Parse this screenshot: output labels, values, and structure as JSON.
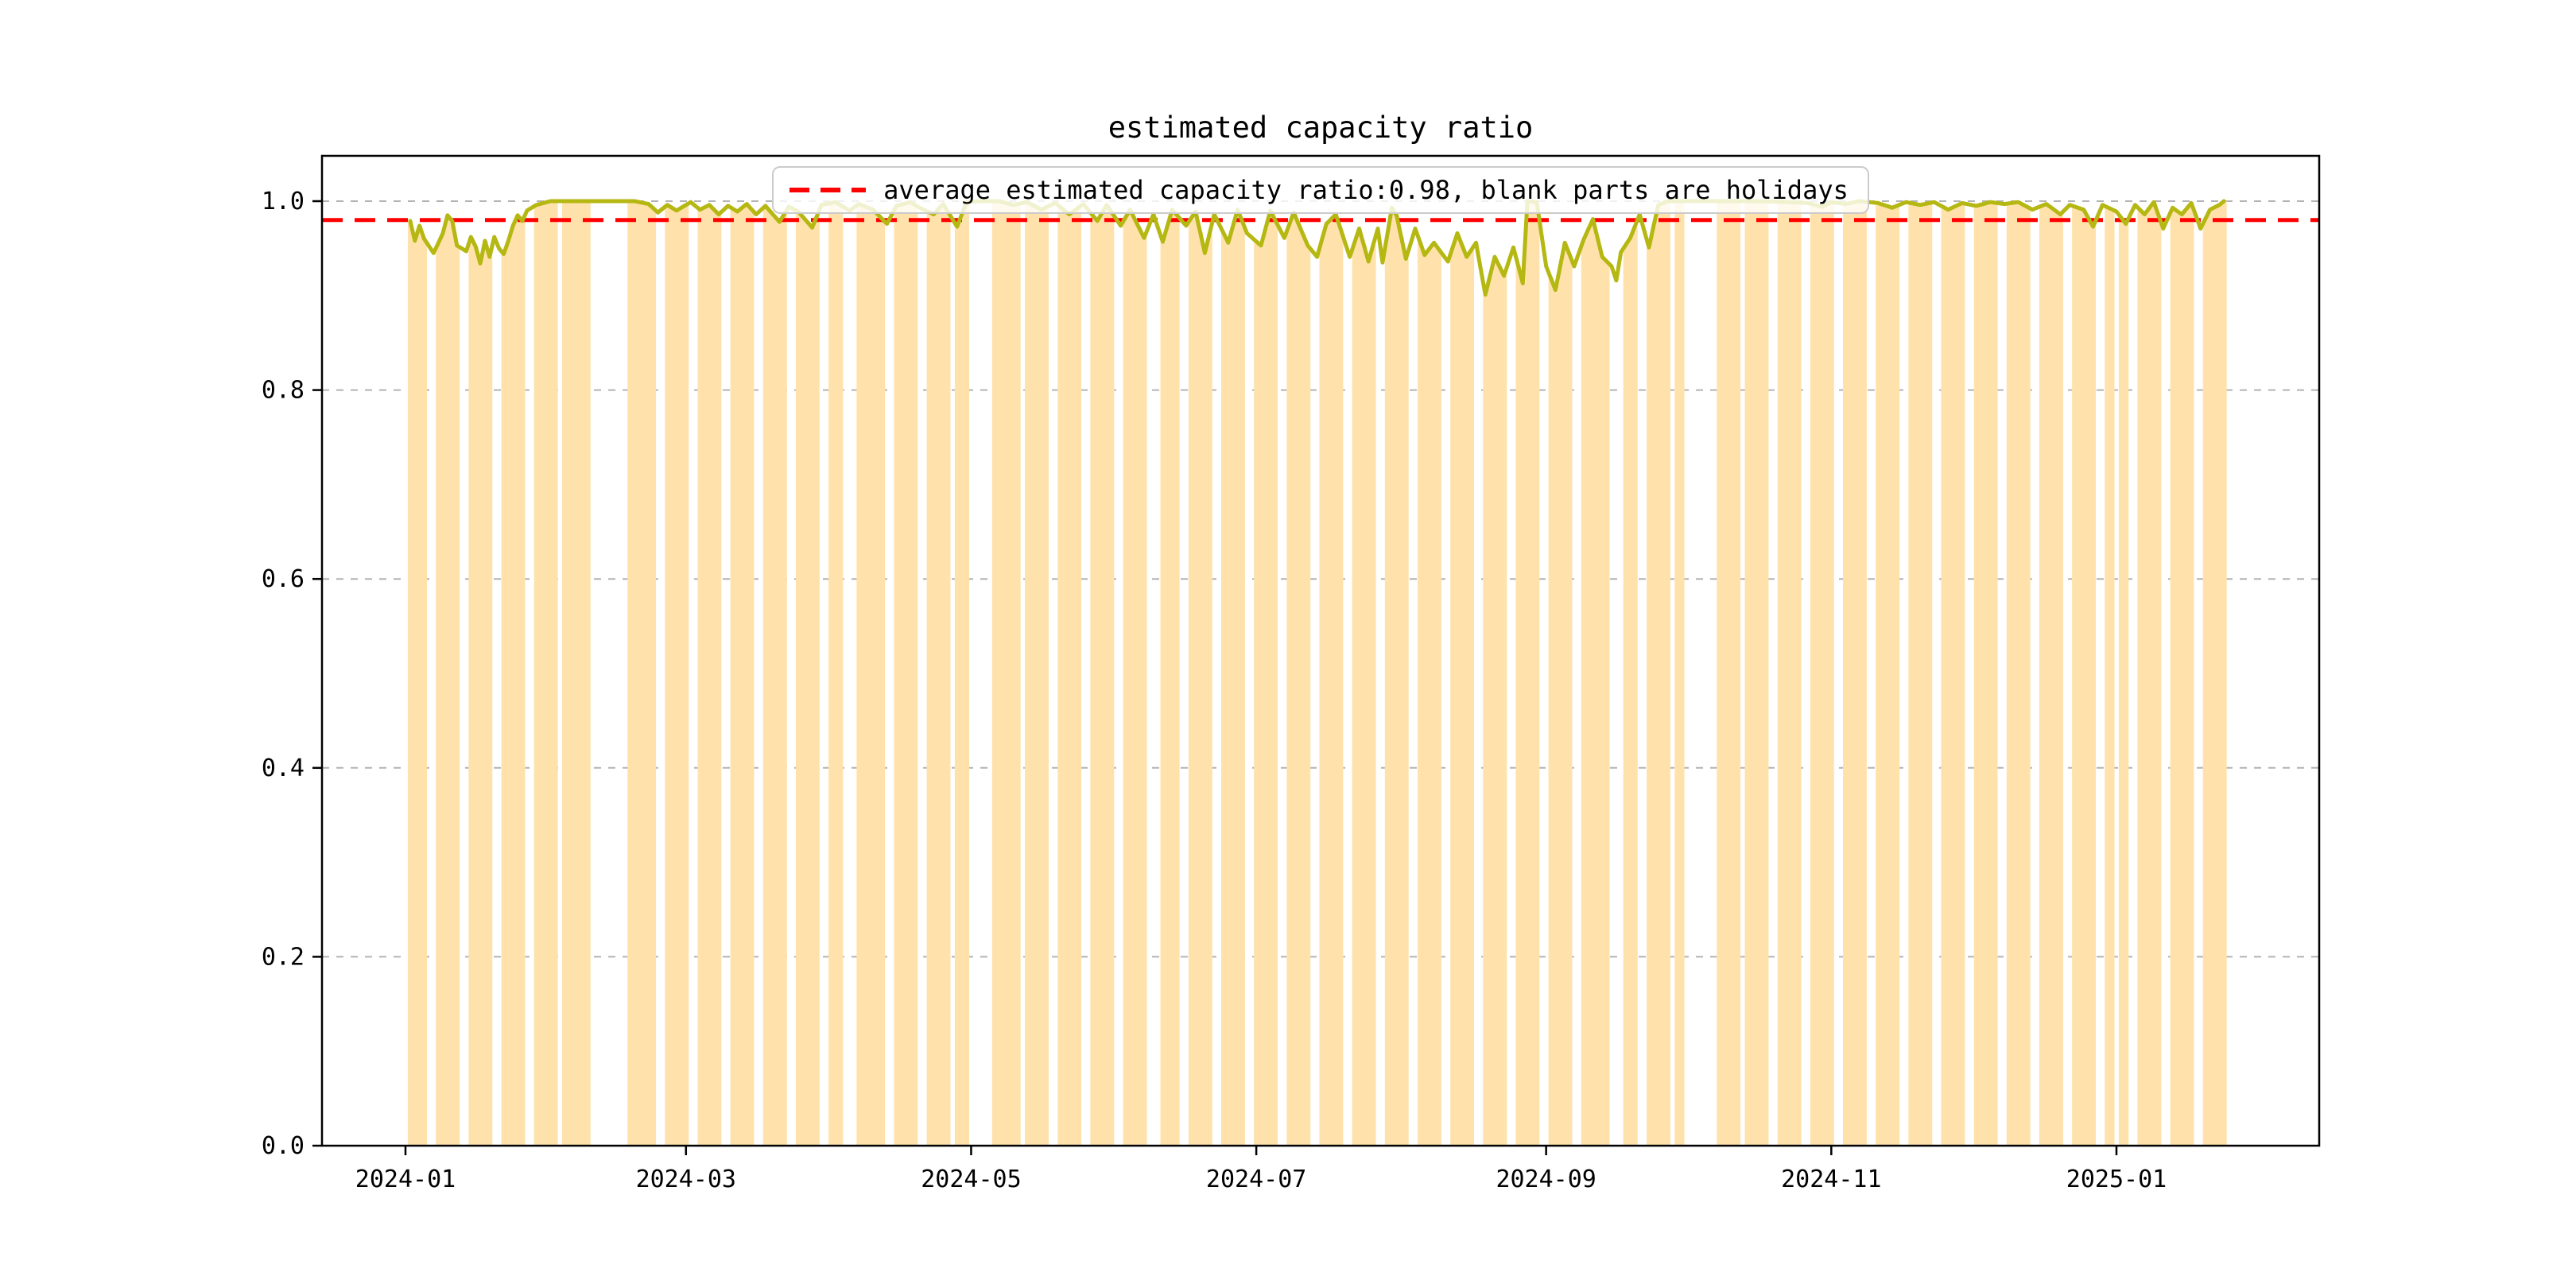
{
  "title": "estimated capacity ratio",
  "legend": {
    "label": "average estimated capacity ratio:0.98, blank parts are holidays",
    "marker": "red-dashed-line"
  },
  "colors": {
    "bar": "#ffe2ab",
    "line": "#b5b712",
    "average_line": "#ff0000",
    "grid": "#b3b3b3",
    "spine": "#000000",
    "legend_border": "#cbcbcb",
    "text": "#000000"
  },
  "chart_data": {
    "type": "line",
    "title": "estimated capacity ratio",
    "xlabel": "",
    "ylabel": "",
    "ylim": [
      0.0,
      1.048
    ],
    "yticks": [
      0.0,
      0.2,
      0.4,
      0.6,
      0.8,
      1.0
    ],
    "ytick_labels": [
      "0.0",
      "0.2",
      "0.4",
      "0.6",
      "0.8",
      "1.0"
    ],
    "xtick_labels": [
      "2024-01",
      "2024-03",
      "2024-05",
      "2024-07",
      "2024-09",
      "2024-11",
      "2025-01"
    ],
    "xtick_dates": [
      "2024-01-01",
      "2024-03-01",
      "2024-05-01",
      "2024-07-01",
      "2024-09-01",
      "2024-11-01",
      "2025-01-01"
    ],
    "grid": true,
    "legend_position": "upper center",
    "average_value": 0.98,
    "data_start": "2024-01-02",
    "data_end": "2025-01-24",
    "epoch": "2024-01-01",
    "note": "olive line = daily estimated capacity ratio; orange bars on workdays only (height = daily ratio); blank vertical stripes = weekends and holidays; red dashed horizontal line = average 0.98",
    "series_control_points": [
      [
        1,
        0.979
      ],
      [
        2,
        0.958
      ],
      [
        3,
        0.974
      ],
      [
        4,
        0.96
      ],
      [
        6,
        0.945
      ],
      [
        8,
        0.966
      ],
      [
        9,
        0.985
      ],
      [
        10,
        0.979
      ],
      [
        11,
        0.953
      ],
      [
        13,
        0.947
      ],
      [
        14,
        0.962
      ],
      [
        15,
        0.952
      ],
      [
        16,
        0.934
      ],
      [
        17,
        0.958
      ],
      [
        18,
        0.941
      ],
      [
        19,
        0.962
      ],
      [
        20,
        0.95
      ],
      [
        21,
        0.944
      ],
      [
        22,
        0.958
      ],
      [
        23,
        0.974
      ],
      [
        24,
        0.985
      ],
      [
        25,
        0.979
      ],
      [
        26,
        0.99
      ],
      [
        28,
        0.996
      ],
      [
        31,
        1.0
      ],
      [
        35,
        1.0
      ],
      [
        40,
        1.0
      ],
      [
        45,
        1.0
      ],
      [
        49,
        1.0
      ],
      [
        52,
        0.997
      ],
      [
        54,
        0.988
      ],
      [
        56,
        0.996
      ],
      [
        58,
        0.99
      ],
      [
        61,
        0.999
      ],
      [
        63,
        0.991
      ],
      [
        65,
        0.996
      ],
      [
        67,
        0.986
      ],
      [
        69,
        0.995
      ],
      [
        71,
        0.989
      ],
      [
        73,
        0.997
      ],
      [
        75,
        0.986
      ],
      [
        77,
        0.995
      ],
      [
        80,
        0.978
      ],
      [
        82,
        0.994
      ],
      [
        84,
        0.989
      ],
      [
        87,
        0.972
      ],
      [
        89,
        0.996
      ],
      [
        92,
        0.999
      ],
      [
        95,
        0.99
      ],
      [
        97,
        0.997
      ],
      [
        100,
        0.991
      ],
      [
        103,
        0.976
      ],
      [
        105,
        0.995
      ],
      [
        108,
        0.999
      ],
      [
        110,
        0.993
      ],
      [
        113,
        0.986
      ],
      [
        115,
        0.997
      ],
      [
        118,
        0.973
      ],
      [
        120,
        0.999
      ],
      [
        123,
        1.0
      ],
      [
        127,
        1.0
      ],
      [
        130,
        0.996
      ],
      [
        133,
        0.999
      ],
      [
        136,
        0.991
      ],
      [
        139,
        0.998
      ],
      [
        142,
        0.986
      ],
      [
        145,
        0.997
      ],
      [
        148,
        0.979
      ],
      [
        150,
        0.996
      ],
      [
        153,
        0.974
      ],
      [
        155,
        0.991
      ],
      [
        158,
        0.961
      ],
      [
        160,
        0.986
      ],
      [
        162,
        0.957
      ],
      [
        164,
        0.991
      ],
      [
        167,
        0.974
      ],
      [
        169,
        0.989
      ],
      [
        171,
        0.945
      ],
      [
        173,
        0.986
      ],
      [
        176,
        0.956
      ],
      [
        178,
        0.991
      ],
      [
        180,
        0.966
      ],
      [
        183,
        0.953
      ],
      [
        185,
        0.99
      ],
      [
        188,
        0.961
      ],
      [
        190,
        0.988
      ],
      [
        193,
        0.953
      ],
      [
        195,
        0.941
      ],
      [
        197,
        0.976
      ],
      [
        199,
        0.986
      ],
      [
        202,
        0.941
      ],
      [
        204,
        0.971
      ],
      [
        206,
        0.936
      ],
      [
        208,
        0.971
      ],
      [
        209,
        0.935
      ],
      [
        211,
        0.993
      ],
      [
        212,
        0.985
      ],
      [
        214,
        0.939
      ],
      [
        216,
        0.971
      ],
      [
        218,
        0.943
      ],
      [
        220,
        0.956
      ],
      [
        223,
        0.936
      ],
      [
        225,
        0.966
      ],
      [
        227,
        0.941
      ],
      [
        229,
        0.956
      ],
      [
        231,
        0.901
      ],
      [
        233,
        0.941
      ],
      [
        235,
        0.921
      ],
      [
        237,
        0.951
      ],
      [
        239,
        0.913
      ],
      [
        240,
        1.0
      ],
      [
        242,
        0.999
      ],
      [
        244,
        0.931
      ],
      [
        246,
        0.906
      ],
      [
        248,
        0.956
      ],
      [
        250,
        0.931
      ],
      [
        252,
        0.959
      ],
      [
        254,
        0.981
      ],
      [
        256,
        0.941
      ],
      [
        258,
        0.931
      ],
      [
        259,
        0.916
      ],
      [
        260,
        0.946
      ],
      [
        262,
        0.961
      ],
      [
        264,
        0.986
      ],
      [
        266,
        0.951
      ],
      [
        267,
        0.974
      ],
      [
        268,
        0.996
      ],
      [
        270,
        1.0
      ],
      [
        275,
        1.0
      ],
      [
        282,
        1.0
      ],
      [
        290,
        1.0
      ],
      [
        296,
        0.999
      ],
      [
        300,
        0.998
      ],
      [
        303,
        0.994
      ],
      [
        305,
        0.999
      ],
      [
        308,
        0.997
      ],
      [
        311,
        1.0
      ],
      [
        315,
        0.998
      ],
      [
        318,
        0.993
      ],
      [
        321,
        0.999
      ],
      [
        324,
        0.996
      ],
      [
        327,
        0.999
      ],
      [
        330,
        0.991
      ],
      [
        333,
        0.998
      ],
      [
        336,
        0.995
      ],
      [
        339,
        0.999
      ],
      [
        342,
        0.997
      ],
      [
        345,
        0.999
      ],
      [
        348,
        0.991
      ],
      [
        351,
        0.997
      ],
      [
        354,
        0.986
      ],
      [
        356,
        0.996
      ],
      [
        359,
        0.991
      ],
      [
        361,
        0.973
      ],
      [
        363,
        0.996
      ],
      [
        366,
        0.989
      ],
      [
        368,
        0.976
      ],
      [
        370,
        0.996
      ],
      [
        372,
        0.986
      ],
      [
        374,
        0.999
      ],
      [
        376,
        0.971
      ],
      [
        378,
        0.993
      ],
      [
        380,
        0.986
      ],
      [
        382,
        0.998
      ],
      [
        384,
        0.971
      ],
      [
        386,
        0.991
      ],
      [
        388,
        0.996
      ],
      [
        389,
        1.0
      ]
    ],
    "holidays_no_bar": [
      [
        "2024-01-01",
        "2024-01-01"
      ],
      [
        "2024-02-10",
        "2024-02-17"
      ],
      [
        "2024-04-04",
        "2024-04-06"
      ],
      [
        "2024-05-01",
        "2024-05-05"
      ],
      [
        "2024-06-08",
        "2024-06-10"
      ],
      [
        "2024-09-15",
        "2024-09-17"
      ],
      [
        "2024-10-01",
        "2024-10-07"
      ],
      [
        "2025-01-01",
        "2025-01-01"
      ]
    ],
    "adjusted_workdays": [
      "2024-02-04",
      "2024-02-18",
      "2024-04-07",
      "2024-04-28",
      "2024-05-11",
      "2024-09-14",
      "2024-09-29",
      "2024-10-12"
    ]
  }
}
